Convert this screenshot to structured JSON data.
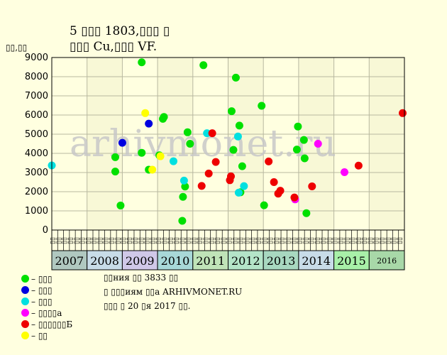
{
  "chart_data": {
    "type": "scatter",
    "title": [
      "5 ▯▯▯ 1803,▯▯▯ ▯",
      "▯▯▯ Cu,▯▯▯ VF."
    ],
    "ylabel": "▯▯,▯▯",
    "ylim": [
      0,
      9000
    ],
    "yticks": [
      0,
      1000,
      2000,
      3000,
      4000,
      5000,
      6000,
      7000,
      8000,
      9000
    ],
    "ytick_labels": [
      "0",
      "1000",
      "2000",
      "3000",
      "4000",
      "5000",
      "6000",
      "7000",
      "8000",
      "9000"
    ],
    "grid": true,
    "watermark": "arhivmonet.ru",
    "xlim": [
      2007,
      2017
    ],
    "years": [
      {
        "label": "2007",
        "color": "#B0C8C0"
      },
      {
        "label": "2008",
        "color": "#C8DCE8"
      },
      {
        "label": "2009",
        "color": "#D0C8E8"
      },
      {
        "label": "2010",
        "color": "#A8D8D8"
      },
      {
        "label": "2011",
        "color": "#C0E4B8"
      },
      {
        "label": "2012",
        "color": "#B4E4C8"
      },
      {
        "label": "2013",
        "color": "#A8D8C0"
      },
      {
        "label": "2014",
        "color": "#C8DCE8"
      },
      {
        "label": "2015",
        "color": "#A8F0A8"
      },
      {
        "label": "2016",
        "color": "#A8D8A8"
      }
    ],
    "month_ticks": [
      "▯▯",
      "▯▯",
      "▯▯",
      "▯▯",
      "▯▯",
      "▯▯",
      "▯▯",
      "▯▯",
      "▯▯",
      "▯▯",
      "▯▯",
      "▯▯",
      "▯▯",
      "▯▯",
      "▯▯",
      "▯▯",
      "▯▯",
      "▯▯",
      "▯▯",
      "▯▯",
      "▯▯",
      "▯▯",
      "▯▯",
      "▯▯",
      "▯▯",
      "▯▯",
      "▯▯",
      "▯▯",
      "▯▯",
      "▯▯",
      "▯▯",
      "▯▯",
      "▯▯",
      "▯▯",
      "▯▯",
      "▯▯",
      "▯▯",
      "▯▯",
      "▯▯",
      "▯▯",
      "▯▯",
      "▯▯",
      "▯▯",
      "▯▯",
      "▯▯",
      "▯▯",
      "▯▯",
      "▯▯",
      "▯▯",
      "▯▯",
      "▯▯",
      "▯▯",
      "▯▯",
      "▯▯",
      "▯▯",
      "▯▯",
      "▯▯",
      "▯▯",
      "▯▯",
      "▯▯"
    ],
    "series": [
      {
        "name": "– ▯▯▯",
        "color": "#00E000",
        "points": [
          {
            "x": 2008.8,
            "y": 3800
          },
          {
            "x": 2008.8,
            "y": 3050
          },
          {
            "x": 2008.95,
            "y": 1280
          },
          {
            "x": 2009.55,
            "y": 8750
          },
          {
            "x": 2009.55,
            "y": 4030
          },
          {
            "x": 2009.75,
            "y": 3150
          },
          {
            "x": 2010.05,
            "y": 3900
          },
          {
            "x": 2010.15,
            "y": 5800
          },
          {
            "x": 2010.18,
            "y": 5900
          },
          {
            "x": 2010.7,
            "y": 480
          },
          {
            "x": 2010.72,
            "y": 1730
          },
          {
            "x": 2010.78,
            "y": 2270
          },
          {
            "x": 2010.85,
            "y": 5100
          },
          {
            "x": 2010.92,
            "y": 4500
          },
          {
            "x": 2011.3,
            "y": 8600
          },
          {
            "x": 2012.1,
            "y": 6200
          },
          {
            "x": 2012.15,
            "y": 4180
          },
          {
            "x": 2012.22,
            "y": 7950
          },
          {
            "x": 2012.32,
            "y": 5450
          },
          {
            "x": 2012.35,
            "y": 1970
          },
          {
            "x": 2012.4,
            "y": 3330
          },
          {
            "x": 2012.95,
            "y": 6480
          },
          {
            "x": 2013.02,
            "y": 1290
          },
          {
            "x": 2013.95,
            "y": 4200
          },
          {
            "x": 2013.98,
            "y": 5400
          },
          {
            "x": 2014.15,
            "y": 4700
          },
          {
            "x": 2014.17,
            "y": 3740
          },
          {
            "x": 2014.22,
            "y": 880
          }
        ]
      },
      {
        "name": "– ▯▯▯",
        "color": "#0000E0",
        "points": [
          {
            "x": 2009.0,
            "y": 4550
          },
          {
            "x": 2009.75,
            "y": 5550
          }
        ]
      },
      {
        "name": "– ▯▯▯",
        "color": "#00E0E0",
        "points": [
          {
            "x": 2007.0,
            "y": 3370
          },
          {
            "x": 2010.45,
            "y": 3590
          },
          {
            "x": 2010.75,
            "y": 2580
          },
          {
            "x": 2011.4,
            "y": 5050
          },
          {
            "x": 2012.28,
            "y": 4880
          },
          {
            "x": 2012.3,
            "y": 1950
          },
          {
            "x": 2012.45,
            "y": 2290
          }
        ]
      },
      {
        "name": "– ▯▯▯▯а",
        "color": "#FF00FF",
        "points": [
          {
            "x": 2013.9,
            "y": 1600
          },
          {
            "x": 2014.55,
            "y": 4500
          },
          {
            "x": 2015.3,
            "y": 3020
          }
        ]
      },
      {
        "name": "– ▯▯▯▯▯▯Б",
        "color": "#EE0000",
        "points": [
          {
            "x": 2011.25,
            "y": 2300
          },
          {
            "x": 2011.45,
            "y": 2950
          },
          {
            "x": 2011.55,
            "y": 5050
          },
          {
            "x": 2011.65,
            "y": 3550
          },
          {
            "x": 2012.05,
            "y": 2600
          },
          {
            "x": 2012.08,
            "y": 2800
          },
          {
            "x": 2013.15,
            "y": 3580
          },
          {
            "x": 2013.3,
            "y": 2500
          },
          {
            "x": 2013.42,
            "y": 1900
          },
          {
            "x": 2013.48,
            "y": 2050
          },
          {
            "x": 2013.88,
            "y": 1700
          },
          {
            "x": 2014.38,
            "y": 2280
          },
          {
            "x": 2015.7,
            "y": 3360
          },
          {
            "x": 2016.95,
            "y": 6100
          }
        ]
      },
      {
        "name": "– ▯▯",
        "color": "#FFFF00",
        "points": [
          {
            "x": 2009.65,
            "y": 6100
          },
          {
            "x": 2009.85,
            "y": 3150
          },
          {
            "x": 2010.08,
            "y": 3850
          }
        ]
      }
    ]
  },
  "notes": [
    "▯▯ния ▯▯ 3833 ▯▯",
    "▯ ▯▯▯иям ▯▯а ARHIVMONET.RU",
    "▯▯▯ ▯ 20 ▯я 2017 ▯▯."
  ]
}
